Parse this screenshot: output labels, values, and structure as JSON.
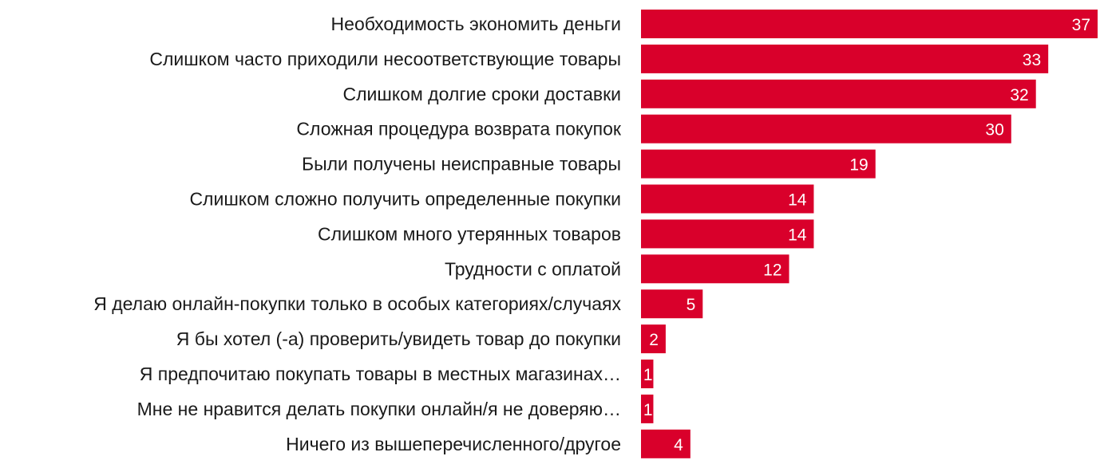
{
  "chart_data": {
    "type": "bar",
    "orientation": "horizontal",
    "categories": [
      "Необходимость экономить деньги",
      "Слишком часто приходили несоответствующие товары",
      "Слишком долгие сроки доставки",
      "Сложная процедура возврата покупок",
      "Были получены неисправные товары",
      "Слишком сложно получить определенные покупки",
      "Слишком много утерянных товаров",
      "Трудности с оплатой",
      "Я делаю онлайн-покупки только в особых категориях/случаях",
      "Я бы хотел (-а) проверить/увидеть товар до покупки",
      "Я предпочитаю покупать товары в местных магазинах…",
      "Мне не нравится делать покупки онлайн/я не доверяю…",
      "Ничего из вышеперечисленного/другое"
    ],
    "values": [
      37,
      33,
      32,
      30,
      19,
      14,
      14,
      12,
      5,
      2,
      1,
      1,
      4
    ],
    "xlim": [
      0,
      37
    ],
    "data_labels": "inside-end",
    "grid": false,
    "bar_color": "#d9002b",
    "label_color": "#ffffff"
  }
}
